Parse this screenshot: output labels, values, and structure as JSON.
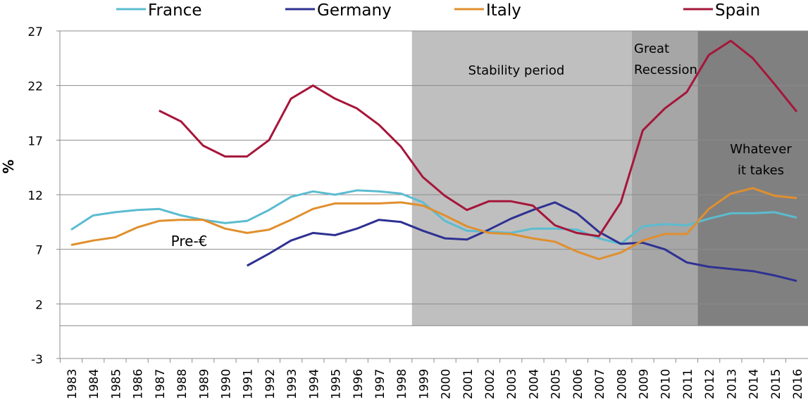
{
  "chart_data": {
    "type": "line",
    "title": "",
    "xlabel": "",
    "ylabel": "%",
    "ylim": [
      -3,
      27
    ],
    "yticks": [
      -3,
      2,
      7,
      12,
      17,
      22,
      27
    ],
    "grid": true,
    "legend_position": "top",
    "x": [
      1983,
      1984,
      1985,
      1986,
      1987,
      1988,
      1989,
      1990,
      1991,
      1992,
      1993,
      1994,
      1995,
      1996,
      1997,
      1998,
      1999,
      2000,
      2001,
      2002,
      2003,
      2004,
      2005,
      2006,
      2007,
      2008,
      2009,
      2010,
      2011,
      2012,
      2013,
      2014,
      2015,
      2016
    ],
    "series": [
      {
        "name": "France",
        "color": "#5bbcd0",
        "values": [
          8.8,
          10.1,
          10.4,
          10.6,
          10.7,
          10.1,
          9.7,
          9.4,
          9.6,
          10.6,
          11.8,
          12.3,
          12.0,
          12.4,
          12.3,
          12.1,
          11.3,
          9.6,
          8.7,
          8.6,
          8.5,
          8.9,
          8.9,
          8.8,
          8.0,
          7.5,
          9.1,
          9.3,
          9.2,
          9.8,
          10.3,
          10.3,
          10.4,
          9.9
        ]
      },
      {
        "name": "Germany",
        "color": "#2e3192",
        "values": [
          null,
          null,
          null,
          null,
          null,
          null,
          null,
          null,
          5.5,
          6.6,
          7.8,
          8.5,
          8.3,
          8.9,
          9.7,
          9.5,
          8.7,
          8.0,
          7.9,
          8.8,
          9.8,
          10.6,
          11.3,
          10.3,
          8.6,
          7.5,
          7.6,
          7.0,
          5.8,
          5.4,
          5.2,
          5.0,
          4.6,
          4.1
        ]
      },
      {
        "name": "Italy",
        "color": "#e08f2e",
        "values": [
          7.4,
          7.8,
          8.1,
          9.0,
          9.6,
          9.7,
          9.7,
          8.9,
          8.5,
          8.8,
          9.7,
          10.7,
          11.2,
          11.2,
          11.2,
          11.3,
          11.0,
          10.1,
          9.1,
          8.5,
          8.4,
          8.0,
          7.7,
          6.8,
          6.1,
          6.7,
          7.8,
          8.4,
          8.4,
          10.7,
          12.1,
          12.6,
          11.9,
          11.7
        ]
      },
      {
        "name": "Spain",
        "color": "#a6163a",
        "values": [
          null,
          null,
          null,
          null,
          19.7,
          18.7,
          16.5,
          15.5,
          15.5,
          17.0,
          20.8,
          22.0,
          20.8,
          19.9,
          18.4,
          16.4,
          13.6,
          11.9,
          10.6,
          11.4,
          11.4,
          11.0,
          9.2,
          8.5,
          8.2,
          11.3,
          17.9,
          19.9,
          21.4,
          24.8,
          26.1,
          24.5,
          22.1,
          19.6
        ]
      }
    ],
    "periods": [
      {
        "label": "Stability period",
        "from": 1998.5,
        "to": 2008.5,
        "color": "#bfbfbf"
      },
      {
        "label": "Great Recession",
        "from": 2008.5,
        "to": 2011.5,
        "color": "#a6a6a6"
      },
      {
        "label": "Whatever it takes",
        "from": 2011.5,
        "to": 2017,
        "color": "#808080"
      }
    ],
    "annotations": [
      {
        "label": "Pre-€",
        "x": 1988.5,
        "y": 7.8
      }
    ]
  }
}
